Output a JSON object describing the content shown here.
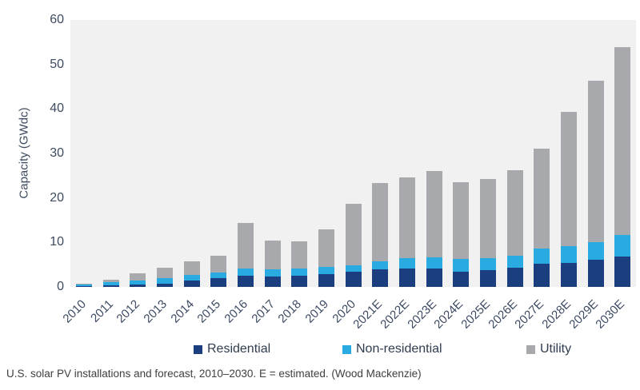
{
  "chart_data": {
    "type": "bar",
    "stacked": true,
    "title": "",
    "xlabel": "",
    "ylabel": "Capacity (GWdc)",
    "ylim": [
      0,
      60
    ],
    "yticks": [
      0,
      10,
      20,
      30,
      40,
      50,
      60
    ],
    "grid": false,
    "legend_position": "bottom",
    "plot_background": "#f1f1f2",
    "categories": [
      "2010",
      "2011",
      "2012",
      "2013",
      "2014",
      "2015",
      "2016",
      "2017",
      "2018",
      "2019",
      "2020",
      "2021E",
      "2022E",
      "2023E",
      "2024E",
      "2025E",
      "2026E",
      "2027E",
      "2028E",
      "2029E",
      "2030E"
    ],
    "series": [
      {
        "name": "Residential",
        "color": "#1b3e7f",
        "values": [
          0.2,
          0.4,
          0.5,
          0.8,
          1.4,
          2.0,
          2.6,
          2.4,
          2.5,
          2.9,
          3.4,
          4.0,
          4.2,
          4.2,
          3.5,
          3.8,
          4.4,
          5.3,
          5.4,
          6.1,
          6.9
        ]
      },
      {
        "name": "Non-residential",
        "color": "#29abe2",
        "values": [
          0.4,
          0.7,
          1.0,
          1.1,
          1.3,
          1.2,
          1.5,
          1.5,
          1.6,
          1.6,
          1.5,
          1.8,
          2.2,
          2.5,
          2.8,
          2.7,
          2.7,
          3.3,
          3.7,
          4.0,
          4.8
        ]
      },
      {
        "name": "Utility",
        "color": "#a7a9ac",
        "values": [
          0.2,
          0.6,
          1.5,
          2.4,
          3.0,
          3.8,
          10.2,
          6.5,
          6.1,
          8.4,
          13.8,
          17.5,
          18.3,
          19.3,
          17.3,
          17.7,
          19.2,
          22.5,
          30.2,
          36.3,
          42.2
        ]
      }
    ],
    "totals": [
      0.8,
      1.7,
      3.0,
      4.3,
      5.7,
      7.0,
      14.3,
      10.4,
      10.2,
      12.9,
      18.7,
      23.3,
      24.7,
      26.0,
      23.6,
      24.2,
      26.3,
      31.1,
      39.3,
      46.4,
      53.9
    ]
  },
  "caption": "U.S. solar PV installations and forecast, 2010–2030. E = estimated. (Wood Mackenzie)",
  "colors": {
    "residential": "#1b3e7f",
    "non_residential": "#29abe2",
    "utility": "#a7a9ac",
    "plot_bg": "#f1f1f2",
    "axis_text": "#3d4a5f",
    "caption_text": "#3f3f3f"
  }
}
